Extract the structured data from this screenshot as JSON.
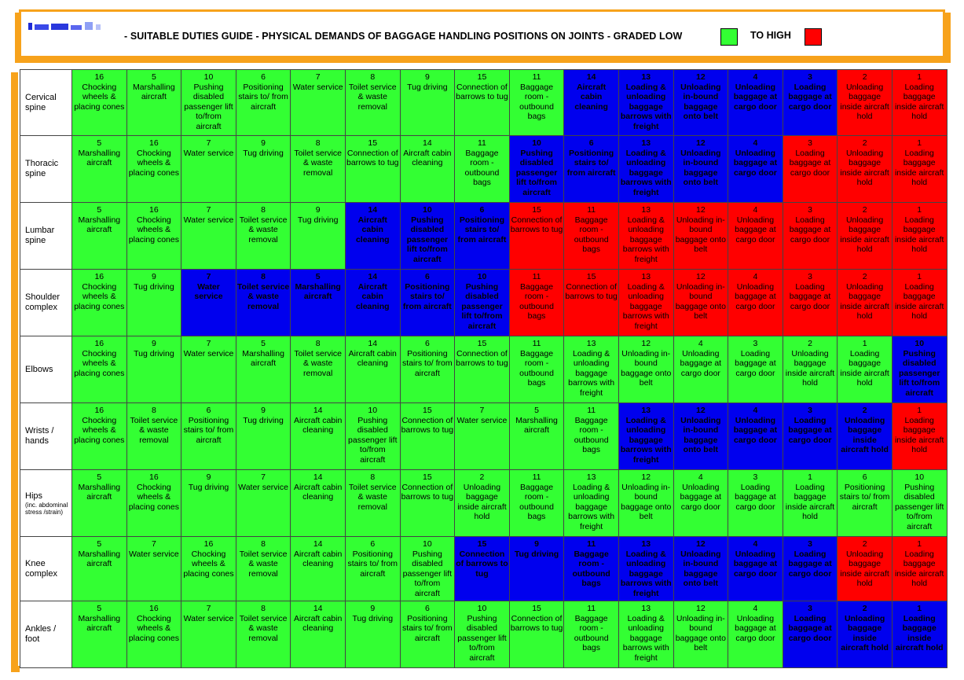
{
  "header": {
    "title": "- SUITABLE DUTIES GUIDE - PHYSICAL DEMANDS OF BAGGAGE HANDLING POSITIONS ON JOINTS - GRADED LOW",
    "to_high": "TO  HIGH",
    "colors": {
      "accent_border": "#f7a21b",
      "low": "#33ff33",
      "mid": "#0000ee",
      "high": "#ff0000"
    }
  },
  "rows": [
    {
      "label": "Cervical spine",
      "sublabel": "",
      "cells": [
        {
          "n": "16",
          "t": "Chocking wheels & placing cones",
          "c": "g"
        },
        {
          "n": "5",
          "t": "Marshalling aircraft",
          "c": "g"
        },
        {
          "n": "10",
          "t": "Pushing disabled passenger lift to/from aircraft",
          "c": "g"
        },
        {
          "n": "6",
          "t": "Positioning stairs to/ from aircraft",
          "c": "g"
        },
        {
          "n": "7",
          "t": "Water service",
          "c": "g"
        },
        {
          "n": "8",
          "t": "Toilet service & waste removal",
          "c": "g"
        },
        {
          "n": "9",
          "t": "Tug driving",
          "c": "g"
        },
        {
          "n": "15",
          "t": "Connection of barrows to tug",
          "c": "g"
        },
        {
          "n": "11",
          "t": "Baggage room - outbound bags",
          "c": "g"
        },
        {
          "n": "14",
          "t": "Aircraft cabin cleaning",
          "c": "b"
        },
        {
          "n": "13",
          "t": "Loading & unloading baggage barrows with freight",
          "c": "b"
        },
        {
          "n": "12",
          "t": "Unloading in-bound baggage onto belt",
          "c": "b"
        },
        {
          "n": "4",
          "t": "Unloading baggage at cargo door",
          "c": "b"
        },
        {
          "n": "3",
          "t": "Loading baggage at cargo door",
          "c": "b"
        },
        {
          "n": "2",
          "t": "Unloading baggage inside aircraft hold",
          "c": "r"
        },
        {
          "n": "1",
          "t": "Loading baggage inside aircraft hold",
          "c": "r"
        }
      ]
    },
    {
      "label": "Thoracic spine",
      "sublabel": "",
      "cells": [
        {
          "n": "5",
          "t": "Marshalling aircraft",
          "c": "g"
        },
        {
          "n": "16",
          "t": "Chocking wheels & placing cones",
          "c": "g"
        },
        {
          "n": "7",
          "t": "Water service",
          "c": "g"
        },
        {
          "n": "9",
          "t": "Tug driving",
          "c": "g"
        },
        {
          "n": "8",
          "t": "Toilet service & waste removal",
          "c": "g"
        },
        {
          "n": "15",
          "t": "Connection of barrows to tug",
          "c": "g"
        },
        {
          "n": "14",
          "t": "Aircraft cabin cleaning",
          "c": "g"
        },
        {
          "n": "11",
          "t": "Baggage room - outbound bags",
          "c": "g"
        },
        {
          "n": "10",
          "t": "Pushing disabled passenger lift to/from aircraft",
          "c": "b"
        },
        {
          "n": "6",
          "t": "Positioning stairs to/ from aircraft",
          "c": "b"
        },
        {
          "n": "13",
          "t": "Loading & unloading baggage barrows with freight",
          "c": "b"
        },
        {
          "n": "12",
          "t": "Unloading in-bound baggage onto belt",
          "c": "b"
        },
        {
          "n": "4",
          "t": "Unloading baggage at cargo door",
          "c": "b"
        },
        {
          "n": "3",
          "t": "Loading baggage at cargo door",
          "c": "r"
        },
        {
          "n": "2",
          "t": "Unloading baggage inside aircraft hold",
          "c": "r"
        },
        {
          "n": "1",
          "t": "Loading baggage inside aircraft hold",
          "c": "r"
        }
      ]
    },
    {
      "label": "Lumbar spine",
      "sublabel": "",
      "cells": [
        {
          "n": "5",
          "t": "Marshalling aircraft",
          "c": "g"
        },
        {
          "n": "16",
          "t": "Chocking wheels & placing cones",
          "c": "g"
        },
        {
          "n": "7",
          "t": "Water service",
          "c": "g"
        },
        {
          "n": "8",
          "t": "Toilet service & waste removal",
          "c": "g"
        },
        {
          "n": "9",
          "t": "Tug driving",
          "c": "g"
        },
        {
          "n": "14",
          "t": "Aircraft cabin cleaning",
          "c": "b"
        },
        {
          "n": "10",
          "t": "Pushing disabled passenger lift to/from aircraft",
          "c": "b"
        },
        {
          "n": "6",
          "t": "Positioning stairs to/ from aircraft",
          "c": "b"
        },
        {
          "n": "15",
          "t": "Connection of barrows to tug",
          "c": "r"
        },
        {
          "n": "11",
          "t": "Baggage room - outbound bags",
          "c": "r"
        },
        {
          "n": "13",
          "t": "Loading & unloading baggage barrows with freight",
          "c": "r"
        },
        {
          "n": "12",
          "t": "Unloading in-bound baggage onto belt",
          "c": "r"
        },
        {
          "n": "4",
          "t": "Unloading baggage at cargo door",
          "c": "r"
        },
        {
          "n": "3",
          "t": "Loading baggage at cargo door",
          "c": "r"
        },
        {
          "n": "2",
          "t": "Unloading baggage inside aircraft hold",
          "c": "r"
        },
        {
          "n": "1",
          "t": "Loading baggage inside aircraft hold",
          "c": "r"
        }
      ]
    },
    {
      "label": "Shoulder complex",
      "sublabel": "",
      "cells": [
        {
          "n": "16",
          "t": "Chocking wheels & placing cones",
          "c": "g"
        },
        {
          "n": "9",
          "t": "Tug driving",
          "c": "g"
        },
        {
          "n": "7",
          "t": "Water service",
          "c": "b"
        },
        {
          "n": "8",
          "t": "Toilet service & waste removal",
          "c": "b"
        },
        {
          "n": "5",
          "t": "Marshalling aircraft",
          "c": "b"
        },
        {
          "n": "14",
          "t": "Aircraft cabin cleaning",
          "c": "b"
        },
        {
          "n": "6",
          "t": "Positioning stairs to/ from aircraft",
          "c": "b"
        },
        {
          "n": "10",
          "t": "Pushing disabled passenger lift to/from aircraft",
          "c": "b"
        },
        {
          "n": "11",
          "t": "Baggage room - outbound bags",
          "c": "r"
        },
        {
          "n": "15",
          "t": "Connection of barrows to tug",
          "c": "r"
        },
        {
          "n": "13",
          "t": "Loading & unloading baggage barrows with freight",
          "c": "r"
        },
        {
          "n": "12",
          "t": "Unloading in-bound baggage onto belt",
          "c": "r"
        },
        {
          "n": "4",
          "t": "Unloading baggage at cargo door",
          "c": "r"
        },
        {
          "n": "3",
          "t": "Loading baggage at cargo door",
          "c": "r"
        },
        {
          "n": "2",
          "t": "Unloading baggage inside aircraft hold",
          "c": "r"
        },
        {
          "n": "1",
          "t": "Loading baggage inside aircraft hold",
          "c": "r"
        }
      ]
    },
    {
      "label": "Elbows",
      "sublabel": "",
      "cells": [
        {
          "n": "16",
          "t": "Chocking wheels & placing cones",
          "c": "g"
        },
        {
          "n": "9",
          "t": "Tug driving",
          "c": "g"
        },
        {
          "n": "7",
          "t": "Water service",
          "c": "g"
        },
        {
          "n": "5",
          "t": "Marshalling aircraft",
          "c": "g"
        },
        {
          "n": "8",
          "t": "Toilet service & waste removal",
          "c": "g"
        },
        {
          "n": "14",
          "t": "Aircraft cabin cleaning",
          "c": "g"
        },
        {
          "n": "6",
          "t": "Positioning stairs to/ from aircraft",
          "c": "g"
        },
        {
          "n": "15",
          "t": "Connection of barrows to tug",
          "c": "g"
        },
        {
          "n": "11",
          "t": "Baggage room - outbound bags",
          "c": "g"
        },
        {
          "n": "13",
          "t": "Loading & unloading baggage barrows with freight",
          "c": "g"
        },
        {
          "n": "12",
          "t": "Unloading in-bound baggage onto belt",
          "c": "g"
        },
        {
          "n": "4",
          "t": "Unloading baggage at cargo door",
          "c": "g"
        },
        {
          "n": "3",
          "t": "Loading baggage at cargo door",
          "c": "g"
        },
        {
          "n": "2",
          "t": "Unloading baggage inside aircraft hold",
          "c": "g"
        },
        {
          "n": "1",
          "t": "Loading baggage inside aircraft hold",
          "c": "g"
        },
        {
          "n": "10",
          "t": "Pushing disabled passenger lift to/from aircraft",
          "c": "b"
        }
      ]
    },
    {
      "label": "Wrists / hands",
      "sublabel": "",
      "cells": [
        {
          "n": "16",
          "t": "Chocking wheels & placing cones",
          "c": "g"
        },
        {
          "n": "8",
          "t": "Toilet service & waste removal",
          "c": "g"
        },
        {
          "n": "6",
          "t": "Positioning stairs to/ from aircraft",
          "c": "g"
        },
        {
          "n": "9",
          "t": "Tug driving",
          "c": "g"
        },
        {
          "n": "14",
          "t": "Aircraft cabin cleaning",
          "c": "g"
        },
        {
          "n": "10",
          "t": "Pushing disabled passenger lift to/from aircraft",
          "c": "g"
        },
        {
          "n": "15",
          "t": "Connection of barrows to tug",
          "c": "g"
        },
        {
          "n": "7",
          "t": "Water service",
          "c": "g"
        },
        {
          "n": "5",
          "t": "Marshalling aircraft",
          "c": "g"
        },
        {
          "n": "11",
          "t": "Baggage room - outbound bags",
          "c": "g"
        },
        {
          "n": "13",
          "t": "Loading & unloading baggage barrows with freight",
          "c": "b"
        },
        {
          "n": "12",
          "t": "Unloading in-bound baggage onto belt",
          "c": "b"
        },
        {
          "n": "4",
          "t": "Unloading baggage at cargo door",
          "c": "b"
        },
        {
          "n": "3",
          "t": "Loading baggage at cargo door",
          "c": "b"
        },
        {
          "n": "2",
          "t": "Unloading baggage inside aircraft hold",
          "c": "b"
        },
        {
          "n": "1",
          "t": "Loading baggage inside aircraft hold",
          "c": "r"
        }
      ]
    },
    {
      "label": "Hips",
      "sublabel": "(inc. abdominal stress /strain)",
      "cells": [
        {
          "n": "5",
          "t": "Marshalling aircraft",
          "c": "g"
        },
        {
          "n": "16",
          "t": "Chocking wheels & placing cones",
          "c": "g"
        },
        {
          "n": "9",
          "t": "Tug driving",
          "c": "g"
        },
        {
          "n": "7",
          "t": "Water service",
          "c": "g"
        },
        {
          "n": "14",
          "t": "Aircraft cabin cleaning",
          "c": "g"
        },
        {
          "n": "8",
          "t": "Toilet service & waste removal",
          "c": "g"
        },
        {
          "n": "15",
          "t": "Connection of barrows to tug",
          "c": "g"
        },
        {
          "n": "2",
          "t": "Unloading baggage inside aircraft hold",
          "c": "g"
        },
        {
          "n": "11",
          "t": "Baggage room - outbound bags",
          "c": "g"
        },
        {
          "n": "13",
          "t": "Loading & unloading baggage barrows with freight",
          "c": "g"
        },
        {
          "n": "12",
          "t": "Unloading in-bound baggage onto belt",
          "c": "g"
        },
        {
          "n": "4",
          "t": "Unloading baggage at cargo door",
          "c": "g"
        },
        {
          "n": "3",
          "t": "Loading baggage at cargo door",
          "c": "g"
        },
        {
          "n": "1",
          "t": "Loading baggage inside aircraft hold",
          "c": "g"
        },
        {
          "n": "6",
          "t": "Positioning stairs to/ from aircraft",
          "c": "g"
        },
        {
          "n": "10",
          "t": "Pushing disabled passenger lift to/from aircraft",
          "c": "g"
        }
      ]
    },
    {
      "label": "Knee complex",
      "sublabel": "",
      "cells": [
        {
          "n": "5",
          "t": "Marshalling aircraft",
          "c": "g"
        },
        {
          "n": "7",
          "t": "Water service",
          "c": "g"
        },
        {
          "n": "16",
          "t": "Chocking wheels & placing cones",
          "c": "g"
        },
        {
          "n": "8",
          "t": "Toilet service & waste removal",
          "c": "g"
        },
        {
          "n": "14",
          "t": "Aircraft cabin cleaning",
          "c": "g"
        },
        {
          "n": "6",
          "t": "Positioning stairs to/ from aircraft",
          "c": "g"
        },
        {
          "n": "10",
          "t": "Pushing disabled passenger lift to/from aircraft",
          "c": "g"
        },
        {
          "n": "15",
          "t": "Connection of barrows to tug",
          "c": "b"
        },
        {
          "n": "9",
          "t": "Tug driving",
          "c": "b"
        },
        {
          "n": "11",
          "t": "Baggage room - outbound bags",
          "c": "b"
        },
        {
          "n": "13",
          "t": "Loading & unloading baggage barrows with freight",
          "c": "b"
        },
        {
          "n": "12",
          "t": "Unloading in-bound baggage onto belt",
          "c": "b"
        },
        {
          "n": "4",
          "t": "Unloading baggage at cargo door",
          "c": "b"
        },
        {
          "n": "3",
          "t": "Loading baggage at cargo door",
          "c": "b"
        },
        {
          "n": "2",
          "t": "Unloading baggage inside aircraft hold",
          "c": "r"
        },
        {
          "n": "1",
          "t": "Loading baggage inside aircraft hold",
          "c": "r"
        }
      ]
    },
    {
      "label": "Ankles / foot",
      "sublabel": "",
      "cells": [
        {
          "n": "5",
          "t": "Marshalling aircraft",
          "c": "g"
        },
        {
          "n": "16",
          "t": "Chocking wheels & placing cones",
          "c": "g"
        },
        {
          "n": "7",
          "t": "Water service",
          "c": "g"
        },
        {
          "n": "8",
          "t": "Toilet service & waste removal",
          "c": "g"
        },
        {
          "n": "14",
          "t": "Aircraft cabin cleaning",
          "c": "g"
        },
        {
          "n": "9",
          "t": "Tug driving",
          "c": "g"
        },
        {
          "n": "6",
          "t": "Positioning stairs to/ from aircraft",
          "c": "g"
        },
        {
          "n": "10",
          "t": "Pushing disabled passenger lift to/from aircraft",
          "c": "g"
        },
        {
          "n": "15",
          "t": "Connection of barrows to tug",
          "c": "g"
        },
        {
          "n": "11",
          "t": "Baggage room - outbound bags",
          "c": "g"
        },
        {
          "n": "13",
          "t": "Loading & unloading baggage barrows with freight",
          "c": "g"
        },
        {
          "n": "12",
          "t": "Unloading in-bound baggage onto belt",
          "c": "g"
        },
        {
          "n": "4",
          "t": "Unloading baggage at cargo door",
          "c": "g"
        },
        {
          "n": "3",
          "t": "Loading baggage at cargo door",
          "c": "b"
        },
        {
          "n": "2",
          "t": "Unloading baggage inside aircraft hold",
          "c": "b"
        },
        {
          "n": "1",
          "t": "Loading baggage inside aircraft hold",
          "c": "b"
        }
      ]
    }
  ]
}
